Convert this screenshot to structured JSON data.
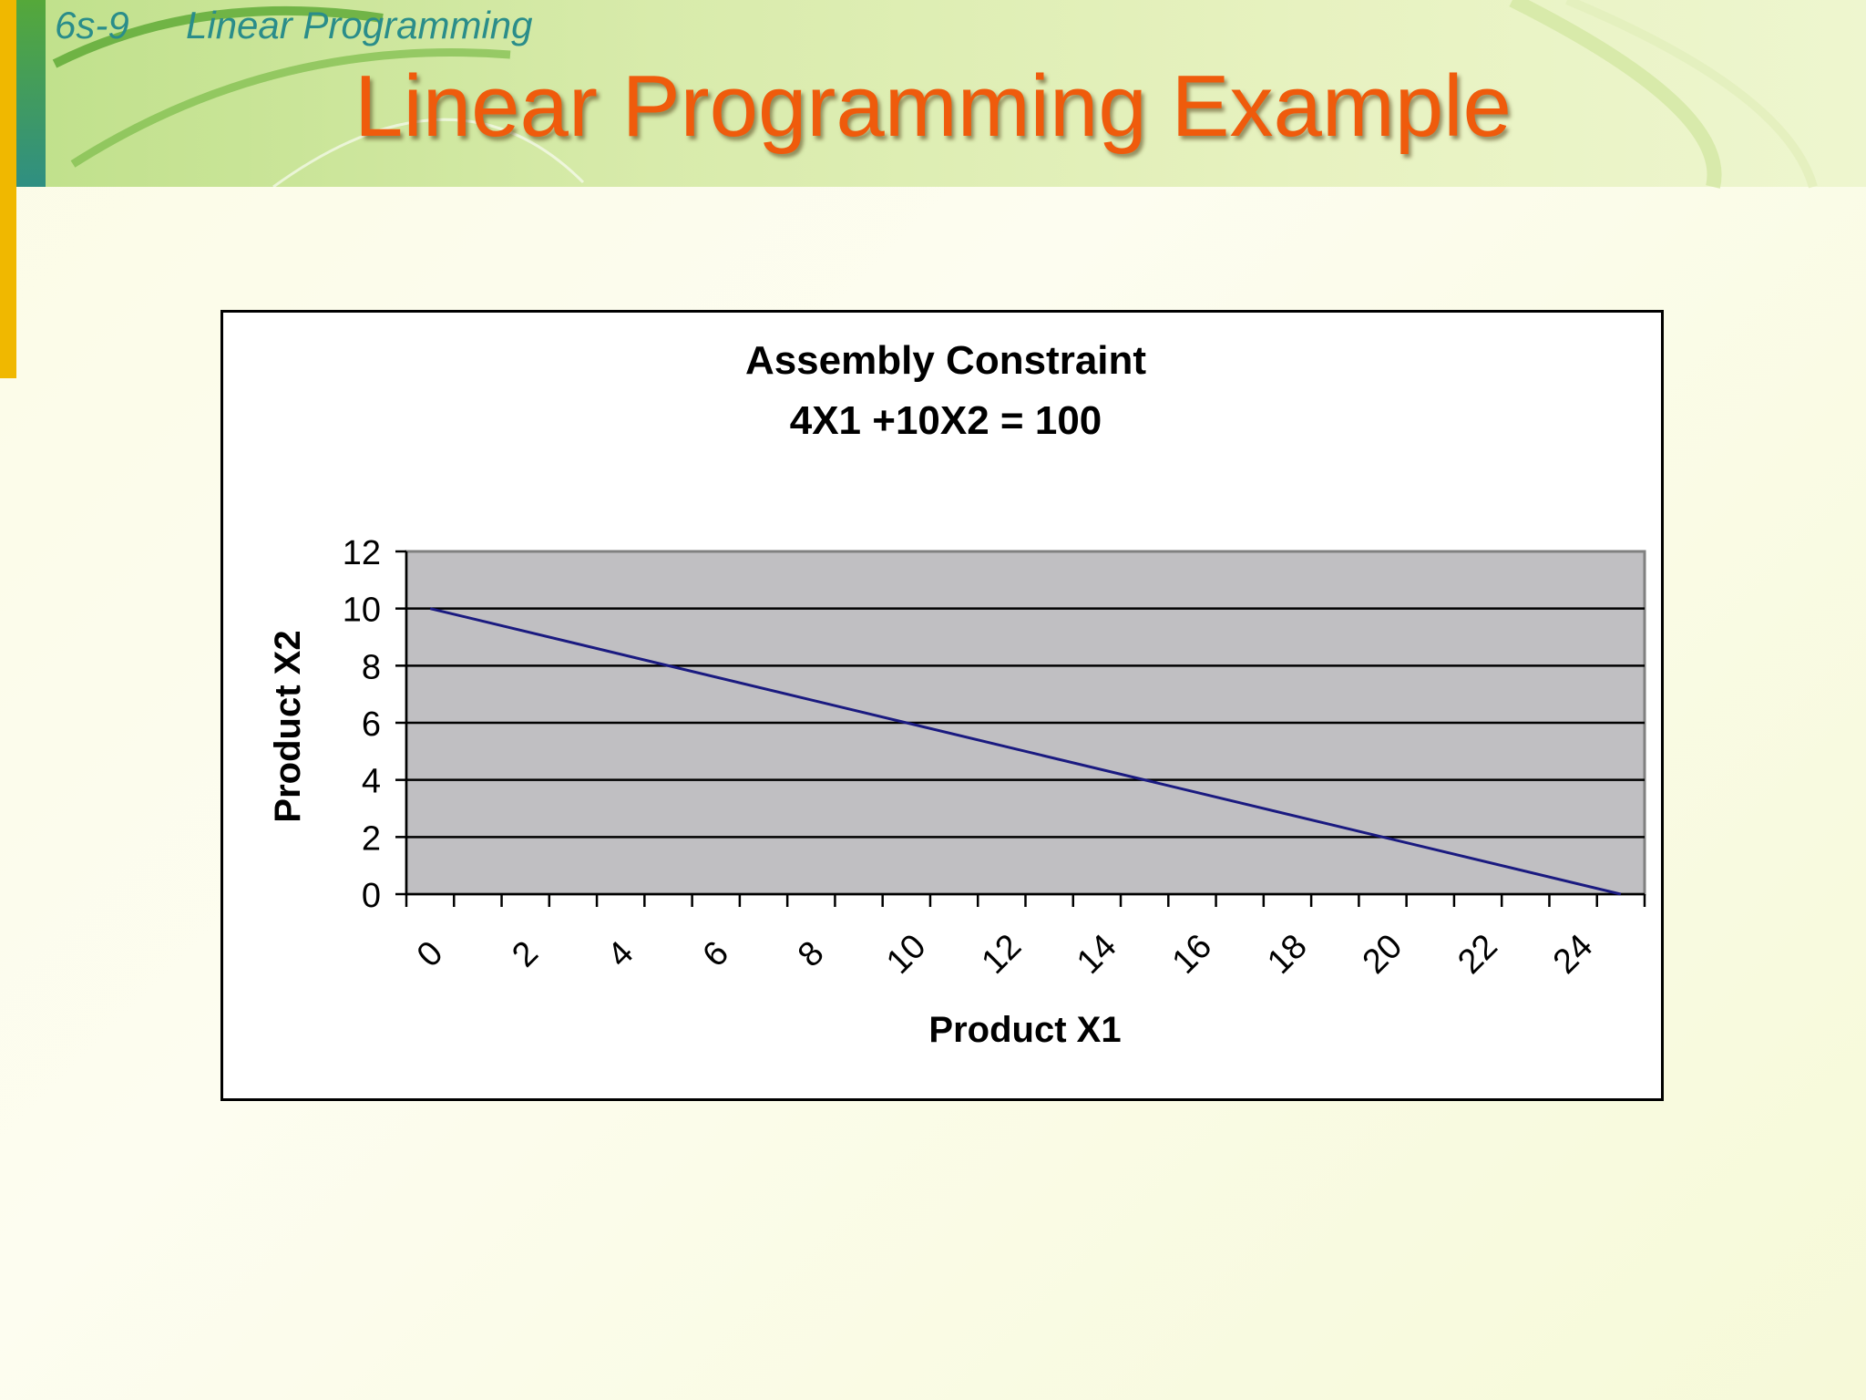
{
  "slide": {
    "number": "6s-9",
    "section": "Linear Programming",
    "title": "Linear Programming Example"
  },
  "colors": {
    "title": "#ef5b0c",
    "header_text": "#2a8d8a",
    "plot_area": "#c0bfc2",
    "series_line": "#1a1a80"
  },
  "chart_data": {
    "type": "line",
    "title": "Assembly Constraint",
    "subtitle": "4X1 +10X2 = 100",
    "xlabel": "Product X1",
    "ylabel": "Product X2",
    "x": [
      0,
      25
    ],
    "series": [
      {
        "values": [
          10,
          0
        ]
      }
    ],
    "x_ticks": [
      "0",
      "2",
      "4",
      "6",
      "8",
      "10",
      "12",
      "14",
      "16",
      "18",
      "20",
      "22",
      "24"
    ],
    "y_ticks": [
      "0",
      "2",
      "4",
      "6",
      "8",
      "10",
      "12"
    ],
    "xlim": [
      0,
      26
    ],
    "ylim": [
      0,
      12
    ],
    "grid": "horizontal",
    "legend": "none"
  }
}
